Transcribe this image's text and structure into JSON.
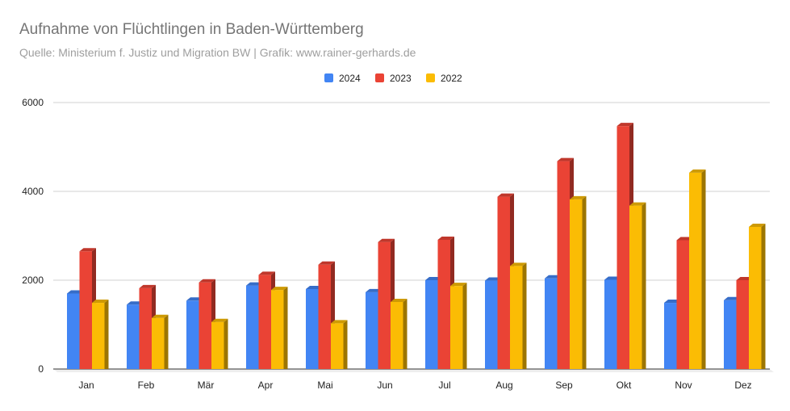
{
  "chart_data": {
    "type": "bar",
    "title": "Aufnahme von Flüchtlingen in Baden-Württemberg",
    "subtitle": "Quelle: Ministerium f. Justiz und Migration BW  |   Grafik: www.rainer-gerhards.de",
    "categories": [
      "Jan",
      "Feb",
      "Mär",
      "Apr",
      "Mai",
      "Jun",
      "Jul",
      "Aug",
      "Sep",
      "Okt",
      "Nov",
      "Dez"
    ],
    "series": [
      {
        "name": "2024",
        "color": "#4285f4",
        "values": [
          1700,
          1450,
          1540,
          1880,
          1800,
          1730,
          2000,
          1990,
          2040,
          2010,
          1490,
          1550
        ]
      },
      {
        "name": "2023",
        "color": "#ea4335",
        "values": [
          2650,
          1820,
          1950,
          2120,
          2350,
          2860,
          2910,
          3880,
          4680,
          5470,
          2900,
          2000
        ]
      },
      {
        "name": "2022",
        "color": "#fbbc04",
        "values": [
          1490,
          1150,
          1060,
          1780,
          1030,
          1510,
          1870,
          2320,
          3820,
          3680,
          4420,
          3200
        ]
      }
    ],
    "ylim": [
      0,
      6000
    ],
    "yticks": [
      0,
      2000,
      4000,
      6000
    ],
    "xlabel": "",
    "ylabel": "",
    "grid": true,
    "legend_position": "top-center",
    "style": "3d-bar"
  }
}
